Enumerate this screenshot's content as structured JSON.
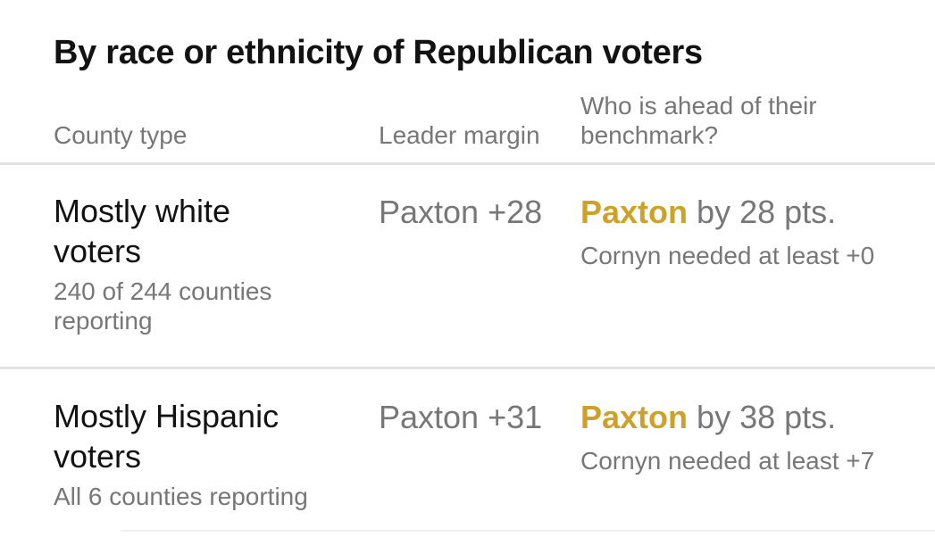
{
  "title": "By race or ethnicity of Republican voters",
  "header": {
    "county_type": "County type",
    "leader_margin": "Leader margin",
    "ahead": "Who is ahead of their benchmark?"
  },
  "rows": [
    {
      "name": "Mostly white voters",
      "reporting": "240 of 244 counties reporting",
      "margin": "Paxton +28",
      "leader": "Paxton",
      "lead": "by 28 pts.",
      "benchmark": "Cornyn needed at least +0"
    },
    {
      "name": "Mostly Hispanic voters",
      "reporting": "All 6 counties reporting",
      "margin": "Paxton +31",
      "leader": "Paxton",
      "lead": "by 38 pts.",
      "benchmark": "Cornyn needed at least +7"
    }
  ]
}
